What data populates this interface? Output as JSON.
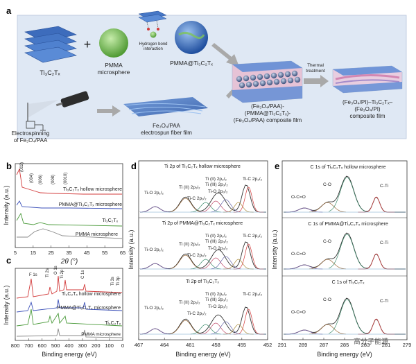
{
  "colors": {
    "panel_bg": "#dfe8f4",
    "mxene_blue": "#4d7ec8",
    "pmma_green": "#6fb845",
    "arrow_gray": "#a9a9a9",
    "pink_fiber": "#e9a8c8",
    "red_trace": "#d23a3a",
    "blue_trace": "#3a4fb8",
    "green_trace": "#4a9a3a",
    "gray_trace": "#8a8a8a",
    "fit_purple": "#7a5ca8",
    "fit_brown": "#9a6a3a"
  },
  "panel_a": {
    "label": "a",
    "mxene_label": "Ti₃C₂Tₓ",
    "plus": "+",
    "pmma_label_1": "PMMA",
    "pmma_label_2": "microsphere",
    "hbond_label_1": "Hydrogen bond",
    "hbond_label_2": "interaction",
    "core_shell_label": "PMMA@Ti₃C₂Tₓ",
    "composite_label_1": "(Fe₃O₄/PAA)-",
    "composite_label_2": "(PMMA@Ti₃C₂Tₓ)-",
    "composite_label_3": "(Fe₃O₄/PAA) composite film",
    "thermal_1": "Thermal",
    "thermal_2": "treatment",
    "final_label_1": "(Fe₃O₄/PI)–Ti₃C₂Tₓ–",
    "final_label_2": "(Fe₃O₄/PI)",
    "final_label_3": "composite film",
    "electro_label_1": "Electrospinning",
    "electro_label_2": "of Fe₃O₄/PAA",
    "fiber_label_1": "Fe₃O₄/PAA",
    "fiber_label_2": "electrospun fiber film"
  },
  "panel_b": {
    "label": "b",
    "chart_data": {
      "type": "line",
      "title": "",
      "xlabel": "2θ (°)",
      "ylabel": "Intensity (a.u.)",
      "xlim": [
        5,
        65
      ],
      "xticks": [
        5,
        15,
        25,
        35,
        45,
        55,
        65
      ],
      "peak_labels": [
        "(002)",
        "(004)",
        "(006)",
        "(008)",
        "(0010)"
      ],
      "series": [
        {
          "name": "Ti₃C₂Tₓ hollow microsphere",
          "color": "red"
        },
        {
          "name": "PMMA@Ti₃C₂Tₓ microsphere",
          "color": "blue"
        },
        {
          "name": "Ti₃C₂Tₓ",
          "color": "green"
        },
        {
          "name": "PMMA microsphere",
          "color": "gray"
        }
      ]
    }
  },
  "panel_c": {
    "label": "c",
    "chart_data": {
      "type": "line",
      "xlabel": "Binding energy (eV)",
      "ylabel": "Intensity (a.u.)",
      "xlim": [
        800,
        0
      ],
      "xticks": [
        800,
        700,
        600,
        500,
        400,
        300,
        200,
        100,
        0
      ],
      "peak_labels": [
        "F 1s",
        "Ti 2s",
        "O 1s",
        "Ti 2p",
        "C 1s",
        "Ti 3s",
        "Ti 3p"
      ],
      "series": [
        {
          "name": "Ti₃C₂Tₓ hollow microsphere",
          "color": "red"
        },
        {
          "name": "PMMA@Ti₃C₂Tₓ microsphere",
          "color": "blue"
        },
        {
          "name": "Ti₃C₂Tₓ",
          "color": "green"
        },
        {
          "name": "PMMA microsphere",
          "color": "gray"
        }
      ]
    }
  },
  "panel_d": {
    "label": "d",
    "chart_data": {
      "type": "line",
      "xlabel": "Binding energy (eV)",
      "ylabel": "Intensity (a.u.)",
      "xlim": [
        467,
        452
      ],
      "xticks": [
        467,
        464,
        461,
        458,
        455,
        452
      ],
      "subplots": [
        {
          "title": "Ti 2p of Ti₃C₂Tₓ hollow microsphere",
          "peaks": [
            "Ti-O 2p₁/₂",
            "Ti (II) 2p₁/₂",
            "Ti (III) 2p₃/₂",
            "Ti-C 2p₁/₂",
            "Ti (II) 2p₃/₂",
            "Ti-O 2p₃/₂",
            "Ti-C 2p₃/₂"
          ]
        },
        {
          "title": "Ti 2p of PMMA@Ti₃C₂Tₓ microsphere",
          "peaks": [
            "Ti-O 2p₁/₂",
            "Ti (II) 2p₁/₂",
            "Ti (III) 2p₃/₂",
            "Ti-C 2p₁/₂",
            "Ti (II) 2p₃/₂",
            "Ti-O 2p₃/₂",
            "Ti-C 2p₃/₂"
          ]
        },
        {
          "title": "Ti 2p of Ti₃C₂Tₓ",
          "peaks": [
            "Ti-O 2p₁/₂",
            "Ti (II) 2p₁/₂",
            "Ti (III) 2p₃/₂",
            "Ti-C 2p₁/₂",
            "Ti (II) 2p₃/₂",
            "Ti-O 2p₃/₂",
            "Ti-C 2p₃/₂"
          ]
        }
      ]
    }
  },
  "panel_e": {
    "label": "e",
    "chart_data": {
      "type": "line",
      "xlabel": "Binding energy (eV)",
      "ylabel": "Intensity (a.u.)",
      "xlim": [
        291,
        279
      ],
      "xticks": [
        291,
        289,
        287,
        285,
        283,
        281,
        279
      ],
      "subplots": [
        {
          "title": "C 1s of Ti₃C₂Tₓ hollow microsphere",
          "peaks": [
            "O-C=O",
            "C-O",
            "C-Ti"
          ]
        },
        {
          "title": "C 1s of PMMA@Ti₃C₂Tₓ microsphere",
          "peaks": [
            "O-C=O",
            "C-O",
            "C-Ti"
          ]
        },
        {
          "title": "C 1s of Ti₃C₂Tₓ",
          "peaks": [
            "O-C=O",
            "C-O",
            "C-Ti"
          ]
        }
      ]
    }
  },
  "watermark": "高分子能源"
}
